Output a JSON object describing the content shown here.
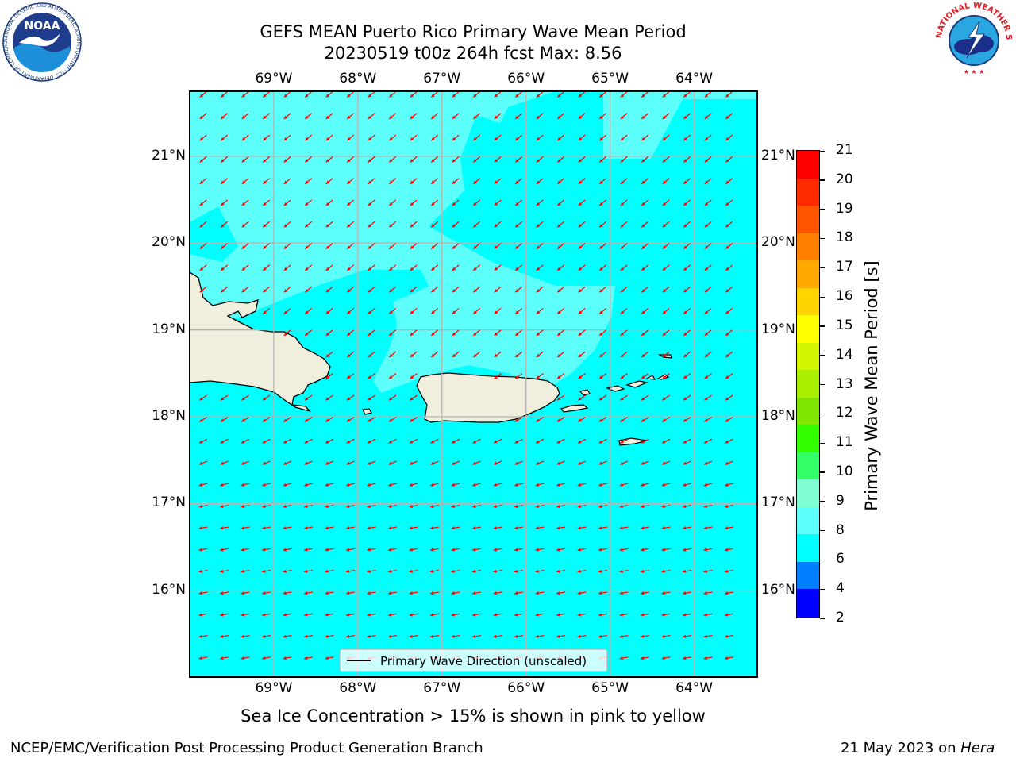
{
  "title": {
    "line1": "GEFS MEAN Puerto Rico Primary Wave Mean Period",
    "line2": "20230519 t00z 264h fcst   Max: 8.56"
  },
  "logos": {
    "noaa": "NOAA",
    "nws_ring": "NATIONAL WEATHER SERVICE",
    "noaa_ring": "NATIONAL OCEANIC AND ATMOSPHERIC ADMINISTRATION · U.S. DEPARTMENT OF COMMERCE"
  },
  "map": {
    "lon_range": [
      -70.0,
      -63.25
    ],
    "lat_range": [
      15.0,
      21.75
    ],
    "lon_labels": [
      "69°W",
      "68°W",
      "67°W",
      "66°W",
      "65°W",
      "64°W"
    ],
    "lat_labels": [
      "21°N",
      "20°N",
      "19°N",
      "18°N",
      "17°N",
      "16°N"
    ],
    "gridlines": true,
    "colors": {
      "band_6_8": "#00ffff",
      "band_8_9": "#5cfffa",
      "land": "#f0eedc",
      "arrow": "#ff0000",
      "grid": "#b4b4b4"
    },
    "legend": {
      "label": "Primary Wave Direction (unscaled)",
      "placement": "bottom-center"
    }
  },
  "colorbar": {
    "label": "Primary Wave Mean Period [s]",
    "ticks": [
      "21",
      "20",
      "19",
      "18",
      "17",
      "16",
      "15",
      "14",
      "13",
      "12",
      "11",
      "10",
      "9",
      "8",
      "6",
      "4",
      "2"
    ],
    "bands_top_to_bottom": [
      "#ff0000",
      "#ff2a00",
      "#ff5500",
      "#ff7f00",
      "#ffaa00",
      "#ffd400",
      "#ffff00",
      "#d4f500",
      "#aaee00",
      "#7fe600",
      "#33ff00",
      "#33ff66",
      "#80ffd4",
      "#5cfffa",
      "#00ffff",
      "#0080ff",
      "#0000ff"
    ]
  },
  "caption": "Sea Ice Concentration > 15% is shown in pink to yellow",
  "footer": {
    "left": "NCEP/EMC/Verification Post Processing Product Generation Branch",
    "right_date": "21 May 2023 on",
    "right_host": "Hera"
  }
}
